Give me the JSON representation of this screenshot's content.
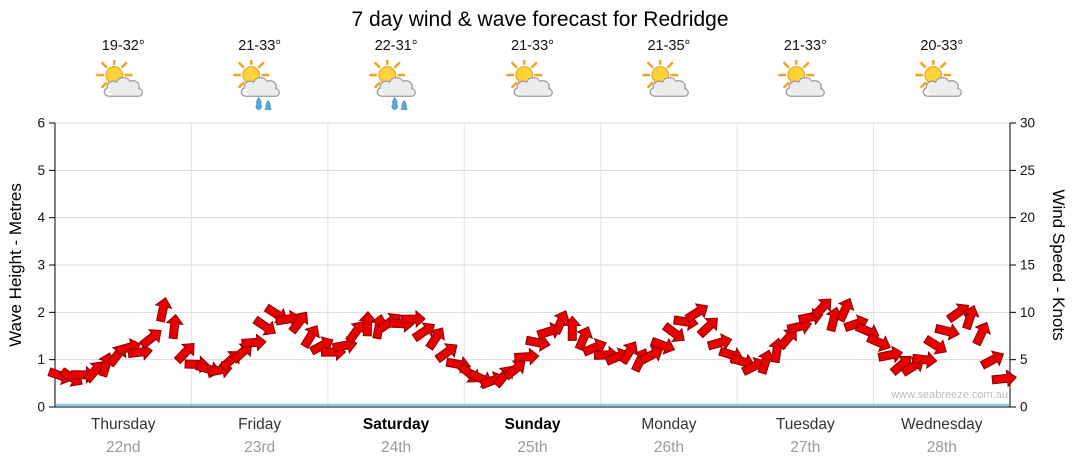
{
  "title": "7 day wind & wave forecast for Redridge",
  "watermark": "www.seabreeze.com.au",
  "axes": {
    "left_label": "Wave Height - Metres",
    "right_label": "Wind Speed - Knots",
    "left_ticks": [
      0,
      1,
      2,
      3,
      4,
      5,
      6
    ],
    "right_ticks": [
      0,
      5,
      10,
      15,
      20,
      25,
      30
    ]
  },
  "days": [
    {
      "name": "Thursday",
      "date": "22nd",
      "temp": "19-32°",
      "icon": "sun-cloud",
      "bold": false
    },
    {
      "name": "Friday",
      "date": "23rd",
      "temp": "21-33°",
      "icon": "sun-cloud-rain",
      "bold": false
    },
    {
      "name": "Saturday",
      "date": "24th",
      "temp": "22-31°",
      "icon": "sun-cloud-rain",
      "bold": true
    },
    {
      "name": "Sunday",
      "date": "25th",
      "temp": "21-33°",
      "icon": "sun-cloud",
      "bold": true
    },
    {
      "name": "Monday",
      "date": "26th",
      "temp": "21-35°",
      "icon": "sun-cloud",
      "bold": false
    },
    {
      "name": "Tuesday",
      "date": "27th",
      "temp": "21-33°",
      "icon": "sun-cloud",
      "bold": false
    },
    {
      "name": "Wednesday",
      "date": "28th",
      "temp": "20-33°",
      "icon": "sun-cloud",
      "bold": false
    }
  ],
  "chart_data": {
    "type": "scatter",
    "marker": "red-wind-arrow",
    "title": "7 day wind & wave forecast for Redridge",
    "ylabel_left": "Wave Height - Metres",
    "ylabel_right": "Wind Speed - Knots",
    "ylim_left": [
      0,
      6
    ],
    "ylim_right": [
      0,
      30
    ],
    "grid": true,
    "x_categories": [
      "Thursday",
      "Friday",
      "Saturday",
      "Sunday",
      "Monday",
      "Tuesday",
      "Wednesday"
    ],
    "points_per_day": 12,
    "series": [
      {
        "name": "Wind speed (read on right axis, knots)",
        "units": "knots",
        "values": [
          3.3,
          3.1,
          3.4,
          3.8,
          4.5,
          5.5,
          6.3,
          5.8,
          7.3,
          10.3,
          8.5,
          5.8,
          4.5,
          4.0,
          3.9,
          5.0,
          5.8,
          6.8,
          8.5,
          9.8,
          9.3,
          9.0,
          7.5,
          6.5,
          5.8,
          6.5,
          8.0,
          8.8,
          8.5,
          9.0,
          8.8,
          9.3,
          8.0,
          7.3,
          5.8,
          4.5,
          3.5,
          3.0,
          2.8,
          3.3,
          4.0,
          5.3,
          6.8,
          8.0,
          9.0,
          8.3,
          7.3,
          6.3,
          5.5,
          5.3,
          5.8,
          5.0,
          5.5,
          6.5,
          7.8,
          9.0,
          10.0,
          8.5,
          6.8,
          5.5,
          4.8,
          4.3,
          4.8,
          6.0,
          7.3,
          8.5,
          9.5,
          10.5,
          9.3,
          10.3,
          8.8,
          8.0,
          6.8,
          5.5,
          4.5,
          4.3,
          5.0,
          6.5,
          8.0,
          10.0,
          9.5,
          7.8,
          5.0,
          3.0
        ]
      }
    ],
    "colors": {
      "marker_fill": "#e60000",
      "marker_stroke": "#8f0000",
      "grid": "#d9d9d9",
      "axis": "#000000",
      "zero_line": "#86c7e6"
    }
  }
}
